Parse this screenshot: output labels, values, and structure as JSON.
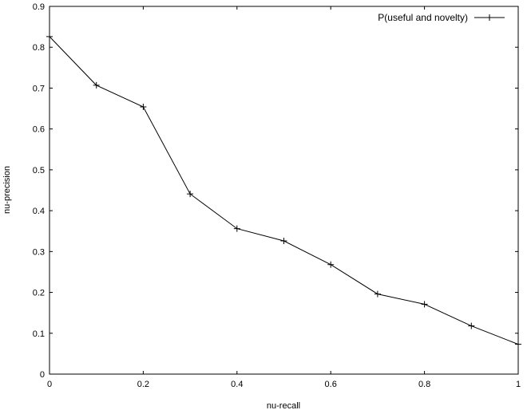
{
  "chart_data": {
    "type": "line",
    "xlabel": "nu-recall",
    "ylabel": "nu-precision",
    "xlim": [
      0,
      1
    ],
    "ylim": [
      0,
      0.9
    ],
    "x_ticks": [
      "0",
      "0.2",
      "0.4",
      "0.6",
      "0.8",
      "1"
    ],
    "y_ticks": [
      "0",
      "0.1",
      "0.2",
      "0.3",
      "0.4",
      "0.5",
      "0.6",
      "0.7",
      "0.8",
      "0.9"
    ],
    "grid": false,
    "legend_position": "top-right",
    "series": [
      {
        "name": "P(useful and novelty)",
        "marker": "plus",
        "color": "#000000",
        "x": [
          0,
          0.1,
          0.2,
          0.3,
          0.4,
          0.5,
          0.6,
          0.7,
          0.8,
          0.9,
          1.0
        ],
        "y": [
          0.826,
          0.707,
          0.654,
          0.441,
          0.356,
          0.326,
          0.268,
          0.196,
          0.171,
          0.118,
          0.073
        ]
      }
    ]
  }
}
